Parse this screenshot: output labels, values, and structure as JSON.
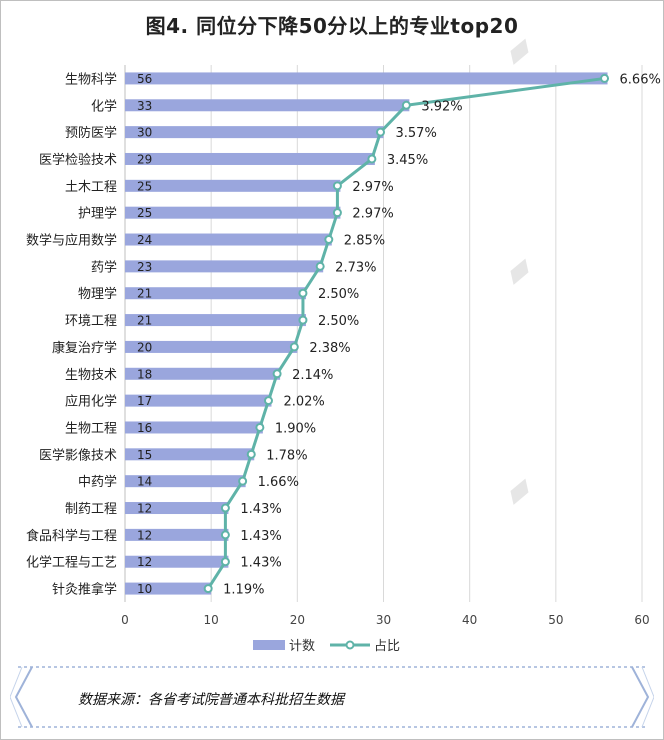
{
  "title": "图4. 同位分下降50分以上的专业top20",
  "source_text": "数据来源：各省考试院普通本科批招生数据",
  "colors": {
    "bar": "#9aa6dd",
    "line": "#5fb3a8",
    "grid": "#d9d9d9"
  },
  "chart_data": {
    "type": "bar",
    "orientation": "horizontal",
    "categories": [
      "生物科学",
      "化学",
      "预防医学",
      "医学检验技术",
      "土木工程",
      "护理学",
      "数学与应用数学",
      "药学",
      "物理学",
      "环境工程",
      "康复治疗学",
      "生物技术",
      "应用化学",
      "生物工程",
      "医学影像技术",
      "中药学",
      "制药工程",
      "食品科学与工程",
      "化学工程与工艺",
      "针灸推拿学"
    ],
    "series": [
      {
        "name": "计数",
        "type": "bar",
        "values": [
          56,
          33,
          30,
          29,
          25,
          25,
          24,
          23,
          21,
          21,
          20,
          18,
          17,
          16,
          15,
          14,
          12,
          12,
          12,
          10
        ]
      },
      {
        "name": "占比",
        "type": "line",
        "values": [
          "6.66%",
          "3.92%",
          "3.57%",
          "3.45%",
          "2.97%",
          "2.97%",
          "2.85%",
          "2.73%",
          "2.50%",
          "2.50%",
          "2.38%",
          "2.14%",
          "2.02%",
          "1.90%",
          "1.78%",
          "1.66%",
          "1.43%",
          "1.43%",
          "1.43%",
          "1.19%"
        ]
      }
    ],
    "xlim": [
      0,
      60
    ],
    "xticks": [
      "0",
      "10",
      "20",
      "30",
      "40",
      "50",
      "60"
    ],
    "grid": true,
    "legend_placement": "bottom"
  }
}
